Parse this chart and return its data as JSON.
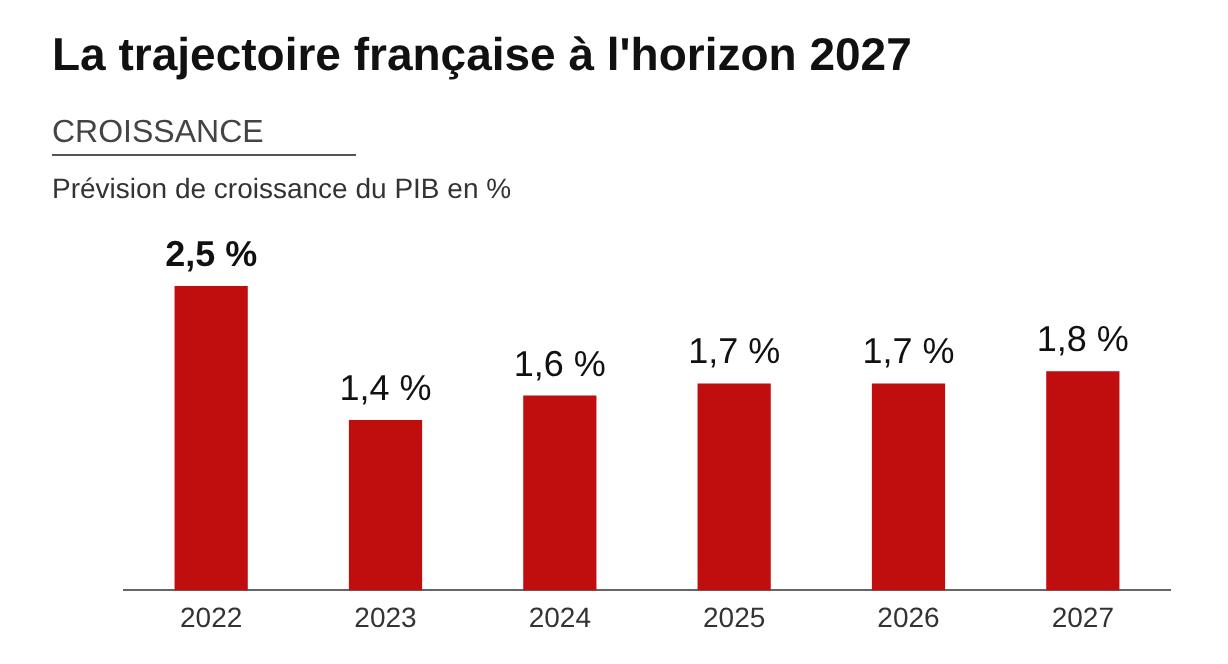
{
  "chart_data": {
    "type": "bar",
    "title": "La trajectoire française à l'horizon 2027",
    "subtitle": "CROISSANCE",
    "ylabel": "Prévision de croissance du PIB en %",
    "categories": [
      "2022",
      "2023",
      "2024",
      "2025",
      "2026",
      "2027"
    ],
    "values": [
      2.5,
      1.4,
      1.6,
      1.7,
      1.7,
      1.8
    ],
    "value_labels": [
      "2,5 %",
      "1,4 %",
      "1,6 %",
      "1,7 %",
      "1,7 %",
      "1,8 %"
    ],
    "color": "#c00d0d",
    "grid": false,
    "legend": false
  }
}
